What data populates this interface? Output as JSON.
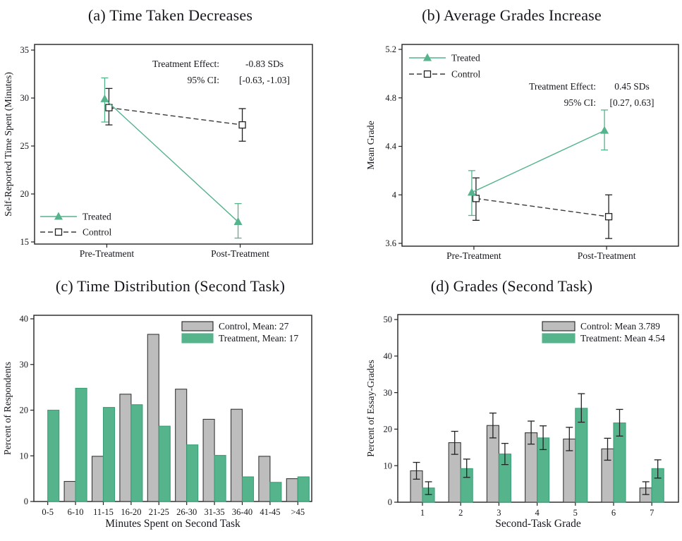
{
  "colors": {
    "green": "#55b48c",
    "green_border": "#3aa078",
    "gray_fill": "#bdbdbd",
    "gray_border": "#383838",
    "dark_line": "#3a3a3a",
    "error_black": "#222222"
  },
  "chart_data": [
    {
      "panel": "a",
      "type": "line",
      "title": "(a) Time Taken Decreases",
      "ylabel": "Self-Reported Time Spent (Minutes)",
      "categories": [
        "Pre-Treatment",
        "Post-Treatment"
      ],
      "yticks": [
        15,
        20,
        25,
        30,
        35
      ],
      "ylim": [
        15,
        35
      ],
      "series": [
        {
          "name": "Control",
          "marker": "square",
          "line": "dashed",
          "color_key": "dark",
          "values": [
            29.0,
            27.2
          ],
          "ci_low": [
            27.2,
            25.5
          ],
          "ci_high": [
            31.0,
            28.9
          ]
        },
        {
          "name": "Treated",
          "marker": "triangle",
          "line": "solid",
          "color_key": "green",
          "values": [
            29.9,
            17.1
          ],
          "ci_low": [
            27.5,
            15.4
          ],
          "ci_high": [
            32.1,
            19.0
          ]
        }
      ],
      "legend": {
        "position": "bottom-left",
        "items": [
          "Treated",
          "Control"
        ]
      },
      "annotation": {
        "rows": [
          {
            "label": "Treatment Effect:",
            "value": "-0.83 SDs"
          },
          {
            "label": "95% CI:",
            "value": "[-0.63, -1.03]"
          }
        ]
      }
    },
    {
      "panel": "b",
      "type": "line",
      "title": "(b) Average Grades Increase",
      "ylabel": "Mean Grade",
      "categories": [
        "Pre-Treatment",
        "Post-Treatment"
      ],
      "yticks": [
        3.6,
        4,
        4.4,
        4.8,
        5.2
      ],
      "ylim": [
        3.6,
        5.2
      ],
      "series": [
        {
          "name": "Control",
          "marker": "square",
          "line": "dashed",
          "color_key": "dark",
          "values": [
            3.97,
            3.82
          ],
          "ci_low": [
            3.79,
            3.64
          ],
          "ci_high": [
            4.14,
            4.0
          ]
        },
        {
          "name": "Treated",
          "marker": "triangle",
          "line": "solid",
          "color_key": "green",
          "values": [
            4.02,
            4.53
          ],
          "ci_low": [
            3.83,
            4.37
          ],
          "ci_high": [
            4.2,
            4.7
          ]
        }
      ],
      "legend": {
        "position": "top-left",
        "items": [
          "Treated",
          "Control"
        ]
      },
      "annotation": {
        "rows": [
          {
            "label": "Treatment Effect:",
            "value": "0.45 SDs"
          },
          {
            "label": "95% CI:",
            "value": "[0.27, 0.63]"
          }
        ]
      }
    },
    {
      "panel": "c",
      "type": "bar",
      "title": "(c) Time Distribution (Second Task)",
      "ylabel": "Percent of Respondents",
      "xlabel": "Minutes Spent on Second Task",
      "categories": [
        "0-5",
        "6-10",
        "11-15",
        "16-20",
        "21-25",
        "26-30",
        "31-35",
        "36-40",
        "41-45",
        ">45"
      ],
      "yticks": [
        0,
        10,
        20,
        30,
        40
      ],
      "ylim": [
        0,
        40
      ],
      "series": [
        {
          "name": "Control, Mean: 27",
          "color_key": "gray",
          "values": [
            0,
            4.4,
            9.9,
            23.5,
            36.6,
            24.6,
            18.0,
            20.2,
            9.9,
            5.0
          ]
        },
        {
          "name": "Treatment, Mean: 17",
          "color_key": "green",
          "values": [
            20.0,
            24.8,
            20.6,
            21.2,
            16.5,
            12.4,
            10.1,
            5.4,
            4.2,
            5.4
          ]
        }
      ]
    },
    {
      "panel": "d",
      "type": "bar",
      "title": "(d) Grades (Second Task)",
      "ylabel": "Percent of Essay-Grades",
      "xlabel": "Second-Task Grade",
      "categories": [
        "1",
        "2",
        "3",
        "4",
        "5",
        "6",
        "7"
      ],
      "yticks": [
        0,
        10,
        20,
        30,
        40,
        50
      ],
      "ylim": [
        0,
        50
      ],
      "series": [
        {
          "name": "Control: Mean 3.789",
          "color_key": "gray",
          "values": [
            8.6,
            16.3,
            21.0,
            19.0,
            17.3,
            14.6,
            3.9
          ],
          "ci_low": [
            6.3,
            13.1,
            17.6,
            15.9,
            14.1,
            11.5,
            2.1
          ],
          "ci_high": [
            10.9,
            19.4,
            24.4,
            22.2,
            20.5,
            17.5,
            5.6
          ]
        },
        {
          "name": "Treatment: Mean 4.54",
          "color_key": "green",
          "values": [
            3.9,
            9.2,
            13.2,
            17.6,
            25.7,
            21.7,
            9.2
          ],
          "ci_low": [
            2.1,
            6.8,
            10.3,
            14.4,
            21.9,
            18.1,
            6.6
          ],
          "ci_high": [
            5.6,
            11.8,
            16.1,
            20.9,
            29.7,
            25.4,
            11.6
          ]
        }
      ]
    }
  ]
}
